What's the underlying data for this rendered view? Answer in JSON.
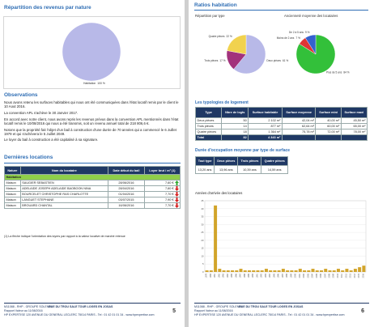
{
  "left_page": {
    "title": "Répartition des revenus par nature",
    "revenue_pie": {
      "type": "pie",
      "labels": [
        "Habitation"
      ],
      "values": [
        100
      ],
      "value_labels": [
        "100 %"
      ],
      "colors": [
        "#b8b9e8"
      ]
    },
    "observations": {
      "heading": "Observations",
      "paragraphs": [
        "Nous avons retenu les surfaces habitables qui nous ont été communiquées dans l'état locatif remis par le client le 10 Aout 2016.",
        "La convention APL s'achève le 30 Janvier 2017.",
        "En accord avec notre client, nous avons repris les revenus prévus dans la convention APL mentionnés dans l'état locatif remis le 10/08/2016 qui nous a été transmis, soit un revenu annuel total de 218 806,6 €.",
        "Notons que la propriété fait l'objet d'un bail à construction d'une durée de 70 années qui a commencé le 6 Juillet 1979 et qui s'achèvera le 5 Juillet 2049.",
        "Le loyer du bail à construction a été capitalisé à sa signature."
      ]
    },
    "locations": {
      "heading": "Dernières locations",
      "columns": [
        "Nature",
        "Nom du locataire",
        "Date début du bail",
        "Loyer brut / m² (1)"
      ],
      "section": "Habitation",
      "rows": [
        [
          "Maison",
          "SAUGIER SEBASTIEN",
          "28/06/2016",
          "7,60 €"
        ],
        [
          "Maison",
          "ADELAIDE JOSEPH ADELAIDE BAOBOON NINA",
          "28/04/2016",
          "7,60 €"
        ],
        [
          "Maison",
          "BOURCELET CHRISTOPHE RAS CHARLOTTE",
          "01/04/2016",
          "7,70 €"
        ],
        [
          "Maison",
          "LANGUET STEPHANE",
          "03/07/2015",
          "7,90 €"
        ],
        [
          "Maison",
          "BROUARD CHANTAL",
          "16/06/2016",
          "7,70 €"
        ]
      ],
      "trends": [
        "up",
        "down",
        "down",
        "down",
        "down"
      ],
      "footnote": "(1) La flèche indique l'orientation des loyers par rapport à la valeur locative de marché retenue"
    },
    "footer": {
      "reference": "M11088 - RHP - GROUPE SOLENDI",
      "address": "RUE DU TROU SALE TOUR LOGES EN JOSAS",
      "report": "Rapport Valeur au 11/08/2016",
      "company": "HP EXPERTISE 120 AVENUE DU GENERAL LECLERC 75014 PARIS - Tel : 01 42 01 01 34 - www.hpexpertise.com",
      "page_number": "5"
    }
  },
  "right_page": {
    "title": "Ratios habitation",
    "type_pie": {
      "type": "pie",
      "title": "Répartition par type",
      "labels": [
        "Deux pièces",
        "Trois pièces",
        "Quatre pièces"
      ],
      "values": [
        61,
        17,
        22
      ],
      "value_labels": [
        "61 %",
        "17 %",
        "22 %"
      ],
      "colors": [
        "#b8b9e8",
        "#a2327c",
        "#f1d24e"
      ]
    },
    "tenure_pie": {
      "type": "pie",
      "title": "Ancienneté moyenne des locataires",
      "labels": [
        "Plus de 5 ans",
        "Moins de 2 ans",
        "De 2 à 5 ans"
      ],
      "values": [
        84,
        7,
        9
      ],
      "value_labels": [
        "84 %",
        "7 %",
        "9 %"
      ],
      "colors": [
        "#33c03a",
        "#e03535",
        "#3462d0"
      ]
    },
    "typology": {
      "heading": "Les typologies de logement",
      "columns": [
        "Type",
        "Nbre de logts",
        "Surface habitable",
        "Surface moyenne",
        "Surface mini",
        "Surface maxi"
      ],
      "rows": [
        [
          "Deux pièces",
          "50",
          "2 102 m²",
          "42,04 m²",
          "40,00 m²",
          "45,50 m²"
        ],
        [
          "Trois pièces",
          "14",
          "877 m²",
          "62,64 m²",
          "60,00 m²",
          "65,00 m²"
        ],
        [
          "Quatre pièces",
          "18",
          "1 364 m²",
          "75,78 m²",
          "72,00 m²",
          "78,00 m²"
        ]
      ],
      "total": [
        "Total",
        "82",
        "4 343 m²",
        "",
        "",
        ""
      ]
    },
    "duration": {
      "heading": "Durée d'occupation moyenne par type de surface",
      "columns": [
        "Tout type",
        "Deux pièces",
        "Trois pièces",
        "Quatre pièces"
      ],
      "row": [
        "13,20 ans",
        "13,96 ans",
        "10,39 ans",
        "14,59 ans"
      ]
    },
    "arrivals": {
      "type": "bar",
      "title": "Années d'arrivée des locataires",
      "color": "#d2a42a",
      "categories": [
        "1979",
        "1980",
        "1981",
        "1982",
        "1983",
        "1984",
        "1985",
        "1986",
        "1987",
        "1988",
        "1989",
        "1990",
        "1991",
        "1992",
        "1993",
        "1994",
        "1995",
        "1996",
        "1997",
        "1998",
        "1999",
        "2000",
        "2001",
        "2002",
        "2003",
        "2004",
        "2005",
        "2006",
        "2007",
        "2008",
        "2009",
        "2010",
        "2011",
        "2012",
        "2013",
        "2014",
        "2015",
        "2016"
      ],
      "values": [
        1,
        1,
        42,
        2,
        1,
        1,
        1,
        1,
        2,
        1,
        1,
        1,
        1,
        1,
        2,
        1,
        1,
        1,
        2,
        1,
        1,
        1,
        2,
        1,
        1,
        2,
        1,
        1,
        2,
        1,
        1,
        2,
        1,
        2,
        1,
        2,
        3,
        4
      ],
      "ylim": [
        0,
        45
      ],
      "yticks": [
        0,
        5,
        10,
        15,
        20,
        25,
        30,
        35,
        40,
        45
      ],
      "grid": true
    },
    "footer": {
      "reference": "M11088 - RHP - GROUPE SOLENDI",
      "address": "RUE DU TROU SALE TOUR LOGES EN JOSAS",
      "report": "Rapport Valeur au 11/08/2016",
      "company": "HP EXPERTISE 120 AVENUE DU GENERAL LECLERC 75014 PARIS - Tel : 01 42 01 01 34 - www.hpexpertise.com",
      "page_number": "6"
    }
  }
}
